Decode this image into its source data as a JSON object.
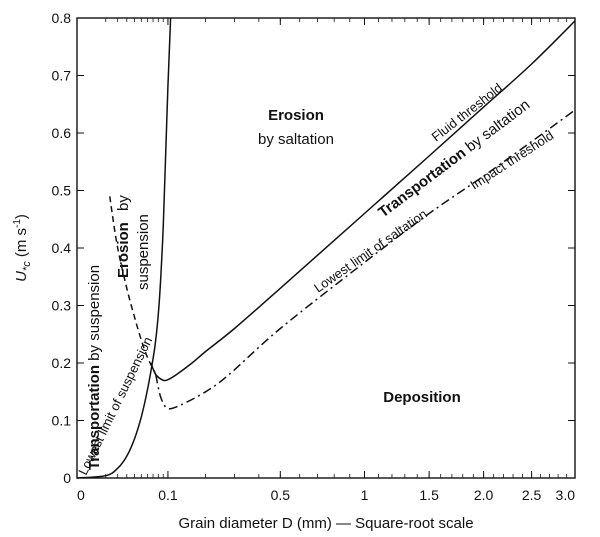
{
  "chart_data": {
    "type": "line",
    "xlabel": "Grain diameter D (mm) — Square-root scale",
    "ylabel_main": "U",
    "ylabel_sub": "*c",
    "ylabel_units": " (m s",
    "ylabel_units_sup": "-1",
    "ylabel_units_close": ")",
    "xscale": "sqrt",
    "xlim": [
      0,
      3.0
    ],
    "ylim": [
      0,
      0.8
    ],
    "x_ticks": [
      0,
      0.1,
      0.5,
      1,
      1.5,
      2.0,
      2.5,
      3.0
    ],
    "x_tick_labels": [
      "0",
      "0.1",
      "0.5",
      "1",
      "1.5",
      "2.0",
      "2.5",
      "3.0"
    ],
    "y_ticks": [
      0,
      0.1,
      0.2,
      0.3,
      0.4,
      0.5,
      0.6,
      0.7,
      0.8
    ],
    "y_tick_labels": [
      "0",
      "0.1",
      "0.2",
      "0.3",
      "0.4",
      "0.5",
      "0.6",
      "0.7",
      "0.8"
    ],
    "series": [
      {
        "name": "Fluid threshold",
        "style": "solid",
        "points": [
          [
            0.066,
            0.2
          ],
          [
            0.075,
            0.18
          ],
          [
            0.09,
            0.17
          ],
          [
            0.1,
            0.171
          ],
          [
            0.12,
            0.18
          ],
          [
            0.16,
            0.2
          ],
          [
            0.2,
            0.22
          ],
          [
            0.3,
            0.26
          ],
          [
            0.5,
            0.33
          ],
          [
            1.0,
            0.46
          ],
          [
            1.5,
            0.56
          ],
          [
            2.0,
            0.645
          ],
          [
            2.5,
            0.72
          ],
          [
            3.0,
            0.795
          ]
        ]
      },
      {
        "name": "Impact threshold",
        "style": "dashdot",
        "points": [
          [
            0.075,
            0.18
          ],
          [
            0.085,
            0.14
          ],
          [
            0.1,
            0.121
          ],
          [
            0.13,
            0.127
          ],
          [
            0.2,
            0.15
          ],
          [
            0.28,
            0.18
          ],
          [
            0.5,
            0.26
          ],
          [
            1.0,
            0.375
          ],
          [
            1.5,
            0.46
          ],
          [
            2.0,
            0.525
          ],
          [
            2.5,
            0.585
          ],
          [
            3.0,
            0.64
          ]
        ]
      },
      {
        "name": "Lowest limit of suspension",
        "style": "solid",
        "points": [
          [
            0,
            0
          ],
          [
            0.01,
            0.004
          ],
          [
            0.02,
            0.017
          ],
          [
            0.03,
            0.038
          ],
          [
            0.04,
            0.068
          ],
          [
            0.05,
            0.106
          ],
          [
            0.06,
            0.153
          ],
          [
            0.07,
            0.208
          ],
          [
            0.075,
            0.24
          ],
          [
            0.08,
            0.285
          ],
          [
            0.085,
            0.35
          ],
          [
            0.09,
            0.44
          ],
          [
            0.095,
            0.56
          ],
          [
            0.1,
            0.68
          ],
          [
            0.106,
            0.8
          ]
        ]
      },
      {
        "name": "suspension-boundary-dashed",
        "style": "dashed",
        "points": [
          [
            0.013,
            0.49
          ],
          [
            0.015,
            0.46
          ],
          [
            0.02,
            0.4
          ],
          [
            0.03,
            0.33
          ],
          [
            0.04,
            0.28
          ],
          [
            0.05,
            0.24
          ],
          [
            0.06,
            0.21
          ],
          [
            0.07,
            0.19
          ],
          [
            0.075,
            0.18
          ]
        ]
      }
    ],
    "region_labels": {
      "erosion_saltation_bold": "Erosion",
      "erosion_saltation_rest": "by saltation",
      "erosion_suspension_bold": "Erosion",
      "erosion_suspension_by": "by",
      "erosion_suspension_rest": "suspension",
      "transport_suspension_bold": "Transportation",
      "transport_suspension_rest": " by suspension",
      "lowest_suspension": "Lowest limit of suspension",
      "fluid_threshold": "Fluid threshold",
      "transport_saltation_bold": "Transportation",
      "transport_saltation_rest": " by saltation",
      "impact_threshold": "Impact threshold",
      "lowest_saltation": "Lowest limit of saltation",
      "deposition": "Deposition"
    },
    "grid": false,
    "legend": "none"
  }
}
